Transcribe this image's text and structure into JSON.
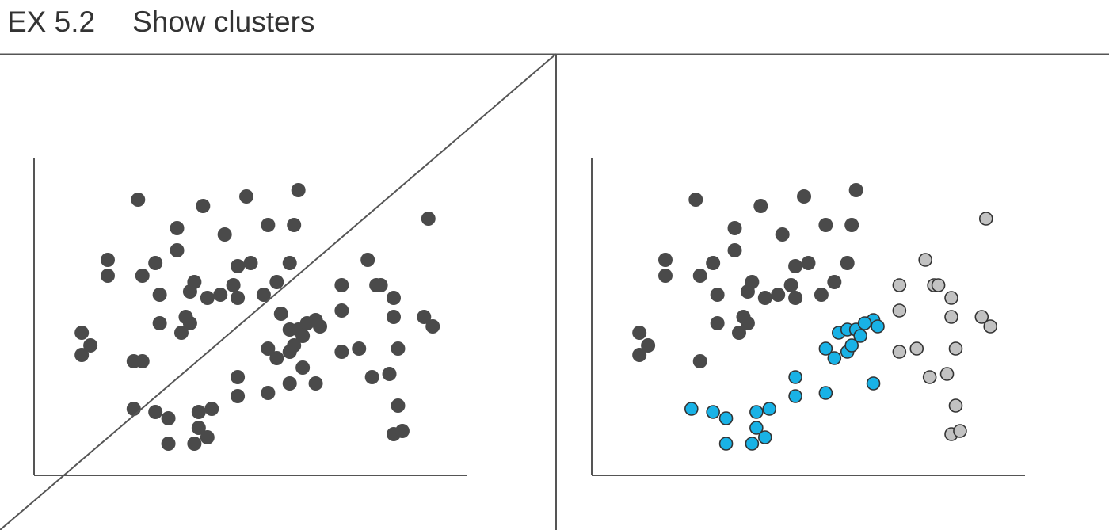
{
  "header": {
    "exhibit_number": "EX 5.2",
    "exhibit_title": "Show clusters"
  },
  "colors": {
    "dark_points": "#4a4a4a",
    "cluster_blue": "#19b2e6",
    "cluster_gray": "#c2c2c2",
    "rule": "#555555",
    "outline": "#333333"
  },
  "chart_data": [
    {
      "type": "scatter",
      "title": "",
      "xlabel": "",
      "ylabel": "",
      "xlim": [
        0,
        100
      ],
      "ylim": [
        0,
        100
      ],
      "grid": false,
      "annotation": "diagonal line splitting the points",
      "series": [
        {
          "color": "#4a4a4a",
          "points": [
            [
              24,
              87
            ],
            [
              39,
              85
            ],
            [
              49,
              88
            ],
            [
              61,
              90
            ],
            [
              54,
              79
            ],
            [
              60,
              79
            ],
            [
              33,
              78
            ],
            [
              44,
              76
            ],
            [
              33,
              71
            ],
            [
              17,
              68
            ],
            [
              28,
              67
            ],
            [
              47,
              66
            ],
            [
              50,
              67
            ],
            [
              59,
              67
            ],
            [
              17,
              63
            ],
            [
              25,
              63
            ],
            [
              37,
              61
            ],
            [
              46,
              60
            ],
            [
              56,
              61
            ],
            [
              29,
              57
            ],
            [
              36,
              58
            ],
            [
              40,
              56
            ],
            [
              43,
              57
            ],
            [
              47,
              56
            ],
            [
              53,
              57
            ],
            [
              11,
              45
            ],
            [
              13,
              41
            ],
            [
              11,
              38
            ],
            [
              29,
              48
            ],
            [
              36,
              48
            ],
            [
              34,
              45
            ],
            [
              35,
              50
            ],
            [
              25,
              36
            ],
            [
              28,
              20
            ],
            [
              31,
              18
            ],
            [
              38,
              20
            ],
            [
              41,
              21
            ],
            [
              38,
              15
            ],
            [
              40,
              12
            ],
            [
              31,
              10
            ],
            [
              37,
              10
            ],
            [
              23,
              21
            ],
            [
              47,
              31
            ],
            [
              47,
              25
            ],
            [
              54,
              26
            ],
            [
              54,
              40
            ],
            [
              57,
              51
            ],
            [
              56,
              37
            ],
            [
              59,
              39
            ],
            [
              59,
              46
            ],
            [
              61,
              46
            ],
            [
              60,
              41
            ],
            [
              62,
              44
            ],
            [
              65,
              49
            ],
            [
              66,
              47
            ],
            [
              63,
              48
            ],
            [
              65,
              29
            ],
            [
              62,
              34
            ],
            [
              77,
              68
            ],
            [
              79,
              60
            ],
            [
              80,
              60
            ],
            [
              71,
              60
            ],
            [
              71,
              52
            ],
            [
              83,
              56
            ],
            [
              83,
              50
            ],
            [
              91,
              81
            ],
            [
              90,
              50
            ],
            [
              92,
              47
            ],
            [
              71,
              39
            ],
            [
              75,
              40
            ],
            [
              84,
              40
            ],
            [
              82,
              32
            ],
            [
              78,
              31
            ],
            [
              84,
              22
            ],
            [
              83,
              13
            ],
            [
              85,
              14
            ],
            [
              23,
              36
            ],
            [
              59,
              29
            ]
          ]
        }
      ]
    },
    {
      "type": "scatter",
      "title": "",
      "xlabel": "",
      "ylabel": "",
      "xlim": [
        0,
        100
      ],
      "ylim": [
        0,
        100
      ],
      "grid": false,
      "series": [
        {
          "color": "#4a4a4a",
          "points": [
            [
              24,
              87
            ],
            [
              39,
              85
            ],
            [
              49,
              88
            ],
            [
              61,
              90
            ],
            [
              54,
              79
            ],
            [
              60,
              79
            ],
            [
              33,
              78
            ],
            [
              44,
              76
            ],
            [
              33,
              71
            ],
            [
              17,
              68
            ],
            [
              28,
              67
            ],
            [
              47,
              66
            ],
            [
              50,
              67
            ],
            [
              59,
              67
            ],
            [
              17,
              63
            ],
            [
              25,
              63
            ],
            [
              37,
              61
            ],
            [
              46,
              60
            ],
            [
              56,
              61
            ],
            [
              29,
              57
            ],
            [
              36,
              58
            ],
            [
              40,
              56
            ],
            [
              43,
              57
            ],
            [
              47,
              56
            ],
            [
              53,
              57
            ],
            [
              11,
              45
            ],
            [
              13,
              41
            ],
            [
              11,
              38
            ],
            [
              29,
              48
            ],
            [
              36,
              48
            ],
            [
              34,
              45
            ],
            [
              35,
              50
            ],
            [
              25,
              36
            ]
          ]
        },
        {
          "color": "#19b2e6",
          "points": [
            [
              28,
              20
            ],
            [
              31,
              18
            ],
            [
              38,
              20
            ],
            [
              41,
              21
            ],
            [
              38,
              15
            ],
            [
              40,
              12
            ],
            [
              31,
              10
            ],
            [
              37,
              10
            ],
            [
              23,
              21
            ],
            [
              47,
              31
            ],
            [
              47,
              25
            ],
            [
              54,
              26
            ],
            [
              54,
              40
            ],
            [
              57,
              45
            ],
            [
              56,
              37
            ],
            [
              59,
              39
            ],
            [
              59,
              46
            ],
            [
              61,
              46
            ],
            [
              60,
              41
            ],
            [
              62,
              44
            ],
            [
              65,
              49
            ],
            [
              66,
              47
            ],
            [
              63,
              48
            ],
            [
              65,
              29
            ]
          ]
        },
        {
          "color": "#c2c2c2",
          "points": [
            [
              77,
              68
            ],
            [
              79,
              60
            ],
            [
              80,
              60
            ],
            [
              71,
              60
            ],
            [
              71,
              52
            ],
            [
              83,
              56
            ],
            [
              83,
              50
            ],
            [
              91,
              81
            ],
            [
              90,
              50
            ],
            [
              92,
              47
            ],
            [
              71,
              39
            ],
            [
              75,
              40
            ],
            [
              84,
              40
            ],
            [
              82,
              32
            ],
            [
              78,
              31
            ],
            [
              84,
              22
            ],
            [
              83,
              13
            ],
            [
              85,
              14
            ]
          ]
        }
      ]
    }
  ]
}
